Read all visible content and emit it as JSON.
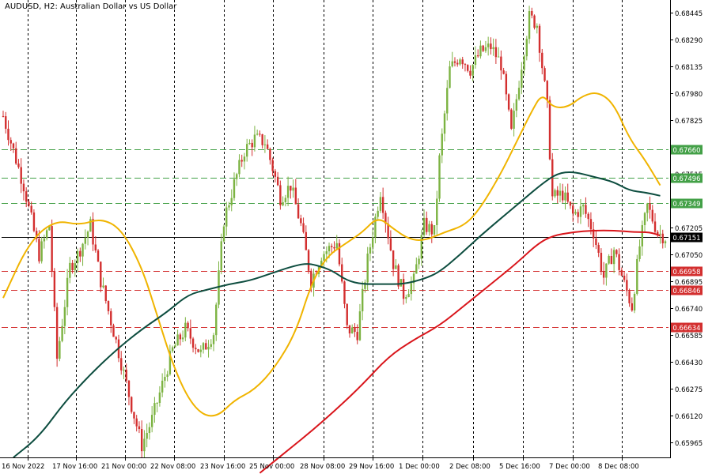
{
  "header": {
    "symbol": "AUDUSD",
    "timeframe": "H2",
    "description": "Australian Dollar vs US Dollar"
  },
  "colors": {
    "bull": "#7cb342",
    "bear": "#d32f2f",
    "ma_fast": "#f0b400",
    "ma_mid": "#0d4d3f",
    "ma_slow": "#d9151b",
    "support": "#d32f2f",
    "resistance": "#43a047",
    "current": "#000000"
  },
  "chart_data": {
    "type": "candlestick",
    "title": "AUDUSD, H2:  Australian Dollar vs US Dollar",
    "ylim": [
      0.6588,
      0.6852
    ],
    "y_ticks": [
      "0.68445",
      "0.68290",
      "0.68135",
      "0.67980",
      "0.67825",
      "0.67670",
      "0.67515",
      "0.67360",
      "0.67205",
      "0.67050",
      "0.66895",
      "0.66740",
      "0.66585",
      "0.66430",
      "0.66275",
      "0.66120",
      "0.65965"
    ],
    "x_ticks": [
      "16 Nov 2022",
      "17 Nov 16:00",
      "21 Nov 00:00",
      "22 Nov 08:00",
      "23 Nov 16:00",
      "25 Nov 00:00",
      "28 Nov 08:00",
      "29 Nov 16:00",
      "1 Dec 00:00",
      "2 Dec 08:00",
      "5 Dec 16:00",
      "7 Dec 00:00",
      "8 Dec 08:00"
    ],
    "horizontal_levels": [
      {
        "value": 0.6766,
        "label": "0.67660",
        "kind": "resistance"
      },
      {
        "value": 0.67496,
        "label": "0.67496",
        "kind": "resistance"
      },
      {
        "value": 0.67349,
        "label": "0.67349",
        "kind": "resistance"
      },
      {
        "value": 0.67151,
        "label": "0.67151",
        "kind": "current"
      },
      {
        "value": 0.66958,
        "label": "0.66958",
        "kind": "support"
      },
      {
        "value": 0.66846,
        "label": "0.66846",
        "kind": "support"
      },
      {
        "value": 0.66634,
        "label": "0.66634",
        "kind": "support"
      }
    ],
    "price_path_anchors": [
      [
        0,
        0.6785
      ],
      [
        8,
        0.6745
      ],
      [
        14,
        0.6705
      ],
      [
        18,
        0.6722
      ],
      [
        21,
        0.6645
      ],
      [
        26,
        0.6698
      ],
      [
        29,
        0.6705
      ],
      [
        34,
        0.6722
      ],
      [
        38,
        0.669
      ],
      [
        44,
        0.6655
      ],
      [
        50,
        0.6618
      ],
      [
        54,
        0.6595
      ],
      [
        58,
        0.661
      ],
      [
        62,
        0.663
      ],
      [
        66,
        0.665
      ],
      [
        71,
        0.6662
      ],
      [
        77,
        0.6648
      ],
      [
        82,
        0.666
      ],
      [
        86,
        0.6725
      ],
      [
        90,
        0.6746
      ],
      [
        94,
        0.6765
      ],
      [
        98,
        0.6772
      ],
      [
        102,
        0.677
      ],
      [
        105,
        0.6755
      ],
      [
        108,
        0.6738
      ],
      [
        112,
        0.6745
      ],
      [
        116,
        0.6722
      ],
      [
        120,
        0.669
      ],
      [
        124,
        0.6705
      ],
      [
        130,
        0.6712
      ],
      [
        134,
        0.6662
      ],
      [
        138,
        0.666
      ],
      [
        142,
        0.6702
      ],
      [
        147,
        0.6742
      ],
      [
        152,
        0.67
      ],
      [
        156,
        0.6682
      ],
      [
        160,
        0.669
      ],
      [
        164,
        0.6722
      ],
      [
        168,
        0.6718
      ],
      [
        170,
        0.676
      ],
      [
        174,
        0.6812
      ],
      [
        178,
        0.682
      ],
      [
        182,
        0.6812
      ],
      [
        186,
        0.6822
      ],
      [
        190,
        0.6825
      ],
      [
        194,
        0.6815
      ],
      [
        198,
        0.6775
      ],
      [
        202,
        0.6815
      ],
      [
        205,
        0.6842
      ],
      [
        208,
        0.6838
      ],
      [
        212,
        0.679
      ],
      [
        214,
        0.6738
      ],
      [
        218,
        0.674
      ],
      [
        222,
        0.6728
      ],
      [
        226,
        0.6732
      ],
      [
        230,
        0.6718
      ],
      [
        234,
        0.6692
      ],
      [
        238,
        0.6708
      ],
      [
        242,
        0.6688
      ],
      [
        245,
        0.6675
      ],
      [
        248,
        0.671
      ],
      [
        251,
        0.6733
      ],
      [
        255,
        0.6718
      ],
      [
        258,
        0.6715
      ]
    ],
    "candle_count": 259,
    "moving_averages": [
      {
        "color_key": "ma_fast",
        "points": [
          [
            0,
            0.668
          ],
          [
            10,
            0.6712
          ],
          [
            20,
            0.6725
          ],
          [
            30,
            0.6722
          ],
          [
            38,
            0.6726
          ],
          [
            46,
            0.672
          ],
          [
            54,
            0.6698
          ],
          [
            60,
            0.667
          ],
          [
            66,
            0.6642
          ],
          [
            72,
            0.6622
          ],
          [
            78,
            0.6612
          ],
          [
            84,
            0.6612
          ],
          [
            90,
            0.6621
          ],
          [
            98,
            0.6627
          ],
          [
            106,
            0.664
          ],
          [
            114,
            0.666
          ],
          [
            120,
            0.6688
          ],
          [
            126,
            0.6704
          ],
          [
            134,
            0.6712
          ],
          [
            140,
            0.6718
          ],
          [
            146,
            0.6727
          ],
          [
            152,
            0.672
          ],
          [
            158,
            0.6714
          ],
          [
            164,
            0.6713
          ],
          [
            172,
            0.6718
          ],
          [
            180,
            0.6722
          ],
          [
            186,
            0.6732
          ],
          [
            194,
            0.6752
          ],
          [
            200,
            0.677
          ],
          [
            206,
            0.6788
          ],
          [
            210,
            0.6798
          ],
          [
            214,
            0.679
          ],
          [
            220,
            0.679
          ],
          [
            226,
            0.6797
          ],
          [
            232,
            0.6799
          ],
          [
            238,
            0.6792
          ],
          [
            244,
            0.6772
          ],
          [
            250,
            0.676
          ],
          [
            256,
            0.6745
          ]
        ]
      },
      {
        "color_key": "ma_mid",
        "points": [
          [
            4,
            0.6588
          ],
          [
            14,
            0.66
          ],
          [
            24,
            0.662
          ],
          [
            34,
            0.6636
          ],
          [
            44,
            0.665
          ],
          [
            54,
            0.6662
          ],
          [
            64,
            0.6672
          ],
          [
            72,
            0.6682
          ],
          [
            80,
            0.6685
          ],
          [
            88,
            0.6688
          ],
          [
            96,
            0.669
          ],
          [
            104,
            0.6694
          ],
          [
            112,
            0.6698
          ],
          [
            118,
            0.67
          ],
          [
            122,
            0.6699
          ],
          [
            128,
            0.6696
          ],
          [
            134,
            0.669
          ],
          [
            140,
            0.6688
          ],
          [
            148,
            0.6688
          ],
          [
            156,
            0.6688
          ],
          [
            164,
            0.6691
          ],
          [
            170,
            0.6695
          ],
          [
            178,
            0.6705
          ],
          [
            186,
            0.6716
          ],
          [
            194,
            0.6726
          ],
          [
            202,
            0.6736
          ],
          [
            210,
            0.6746
          ],
          [
            216,
            0.6752
          ],
          [
            222,
            0.6753
          ],
          [
            230,
            0.675
          ],
          [
            238,
            0.6747
          ],
          [
            244,
            0.6742
          ],
          [
            250,
            0.6741
          ],
          [
            256,
            0.6739
          ]
        ]
      },
      {
        "color_key": "ma_slow",
        "points": [
          [
            100,
            0.6579
          ],
          [
            110,
            0.6591
          ],
          [
            120,
            0.6603
          ],
          [
            130,
            0.6616
          ],
          [
            140,
            0.663
          ],
          [
            150,
            0.6646
          ],
          [
            160,
            0.6656
          ],
          [
            170,
            0.6664
          ],
          [
            180,
            0.6676
          ],
          [
            190,
            0.6688
          ],
          [
            200,
            0.67
          ],
          [
            208,
            0.6711
          ],
          [
            214,
            0.6716
          ],
          [
            222,
            0.6718
          ],
          [
            230,
            0.6719
          ],
          [
            238,
            0.6719
          ],
          [
            246,
            0.6718
          ],
          [
            252,
            0.6718
          ],
          [
            256,
            0.6716
          ]
        ]
      }
    ]
  }
}
